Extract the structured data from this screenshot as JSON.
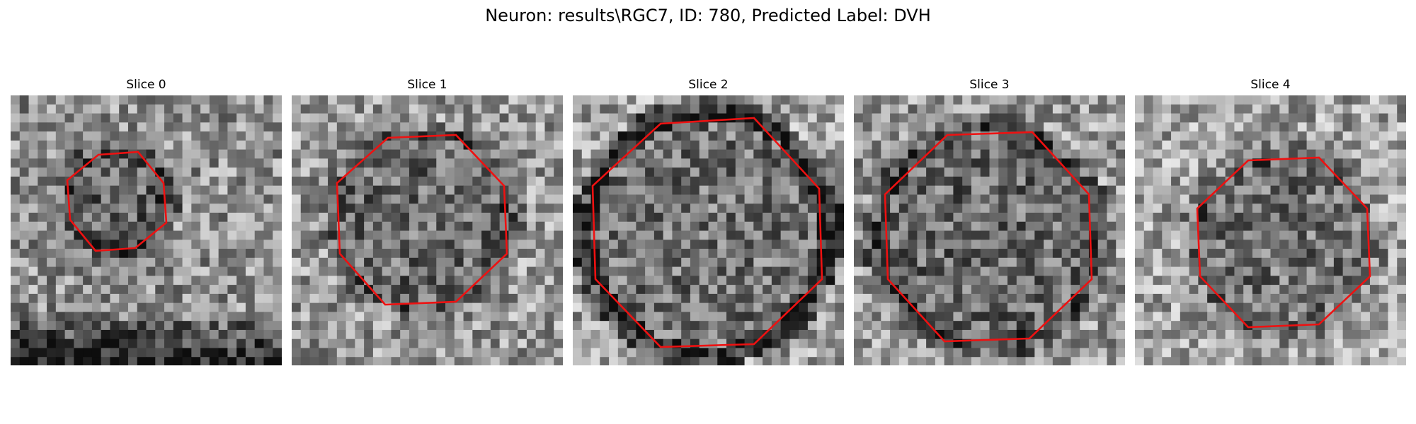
{
  "figure": {
    "title": "Neuron: results\\RGC7, ID: 780, Predicted Label: DVH",
    "outline_color": "#ee1111",
    "colormap": "gray"
  },
  "slices": [
    {
      "label": "Slice 0",
      "image": "grayscale microscopy slice with small red contour"
    },
    {
      "label": "Slice 1",
      "image": "grayscale microscopy slice with red contour"
    },
    {
      "label": "Slice 2",
      "image": "grayscale microscopy slice with large red contour"
    },
    {
      "label": "Slice 3",
      "image": "grayscale microscopy slice with red contour"
    },
    {
      "label": "Slice 4",
      "image": "grayscale microscopy slice with red contour"
    }
  ]
}
